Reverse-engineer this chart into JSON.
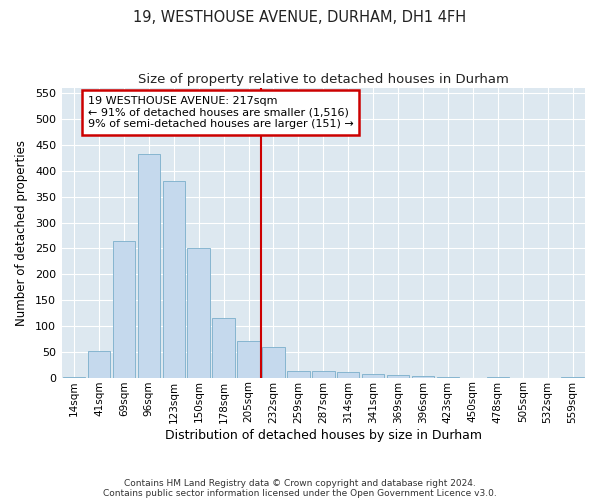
{
  "title1": "19, WESTHOUSE AVENUE, DURHAM, DH1 4FH",
  "title2": "Size of property relative to detached houses in Durham",
  "xlabel": "Distribution of detached houses by size in Durham",
  "ylabel": "Number of detached properties",
  "categories": [
    "14sqm",
    "41sqm",
    "69sqm",
    "96sqm",
    "123sqm",
    "150sqm",
    "178sqm",
    "205sqm",
    "232sqm",
    "259sqm",
    "287sqm",
    "314sqm",
    "341sqm",
    "369sqm",
    "396sqm",
    "423sqm",
    "450sqm",
    "478sqm",
    "505sqm",
    "532sqm",
    "559sqm"
  ],
  "bar_values": [
    2,
    52,
    265,
    432,
    380,
    250,
    115,
    70,
    60,
    13,
    13,
    10,
    7,
    6,
    4,
    2,
    0,
    1,
    0,
    0,
    2
  ],
  "bar_color": "#c5d9ed",
  "bar_edge_color": "#7aaecb",
  "vline_x_idx": 7.5,
  "vline_color": "#cc0000",
  "annotation_title": "19 WESTHOUSE AVENUE: 217sqm",
  "annotation_line1": "← 91% of detached houses are smaller (1,516)",
  "annotation_line2": "9% of semi-detached houses are larger (151) →",
  "annotation_box_edgecolor": "#cc0000",
  "ylim": [
    0,
    560
  ],
  "yticks": [
    0,
    50,
    100,
    150,
    200,
    250,
    300,
    350,
    400,
    450,
    500,
    550
  ],
  "footnote1": "Contains HM Land Registry data © Crown copyright and database right 2024.",
  "footnote2": "Contains public sector information licensed under the Open Government Licence v3.0.",
  "plot_bg_color": "#dde8f0",
  "fig_bg_color": "#ffffff",
  "grid_color": "#ffffff"
}
